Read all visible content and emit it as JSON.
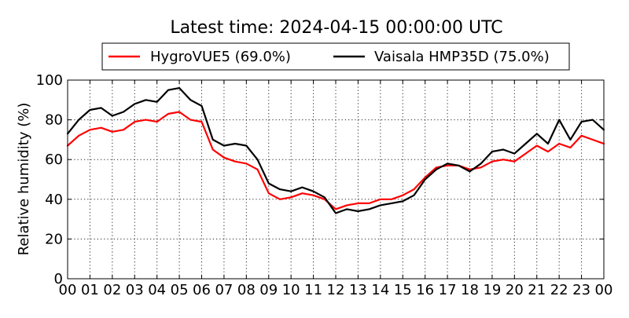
{
  "chart_data": {
    "type": "line",
    "title": "Latest time: 2024-04-15 00:00:00 UTC",
    "xlabel": "",
    "ylabel": "Relative humidity (%)",
    "ylim": [
      0,
      100
    ],
    "xlim": [
      0,
      24
    ],
    "grid": true,
    "legend_placement": "top-center",
    "x_ticks": [
      "00",
      "01",
      "02",
      "03",
      "04",
      "05",
      "06",
      "07",
      "08",
      "09",
      "10",
      "11",
      "12",
      "13",
      "14",
      "15",
      "16",
      "17",
      "18",
      "19",
      "20",
      "21",
      "22",
      "23",
      "00"
    ],
    "y_ticks": [
      "0",
      "20",
      "40",
      "60",
      "80",
      "100"
    ],
    "x_hours": [
      0,
      0.5,
      1,
      1.5,
      2,
      2.5,
      3,
      3.5,
      4,
      4.5,
      5,
      5.5,
      6,
      6.5,
      7,
      7.5,
      8,
      8.5,
      9,
      9.5,
      10,
      10.5,
      11,
      11.5,
      12,
      12.5,
      13,
      13.5,
      14,
      14.5,
      15,
      15.5,
      16,
      16.5,
      17,
      17.5,
      18,
      18.5,
      19,
      19.5,
      20,
      20.5,
      21,
      21.5,
      22,
      22.5,
      23,
      23.5,
      24
    ],
    "series": [
      {
        "name": "HygroVUE5 (69.0%)",
        "color": "#ff0000",
        "values": [
          67,
          72,
          75,
          76,
          74,
          75,
          79,
          80,
          79,
          83,
          84,
          80,
          79,
          65,
          61,
          59,
          58,
          55,
          43,
          40,
          41,
          43,
          42,
          40,
          35,
          37,
          38,
          38,
          40,
          40,
          42,
          45,
          51,
          56,
          57,
          57,
          55,
          56,
          59,
          60,
          59,
          63,
          67,
          64,
          68,
          66,
          72,
          70,
          68
        ]
      },
      {
        "name": "Vaisala HMP35D (75.0%)",
        "color": "#000000",
        "values": [
          73,
          80,
          85,
          86,
          82,
          84,
          88,
          90,
          89,
          95,
          96,
          90,
          87,
          70,
          67,
          68,
          67,
          60,
          48,
          45,
          44,
          46,
          44,
          41,
          33,
          35,
          34,
          35,
          37,
          38,
          39,
          42,
          50,
          55,
          58,
          57,
          54,
          58,
          64,
          65,
          63,
          68,
          73,
          68,
          80,
          70,
          79,
          80,
          75
        ]
      }
    ]
  }
}
